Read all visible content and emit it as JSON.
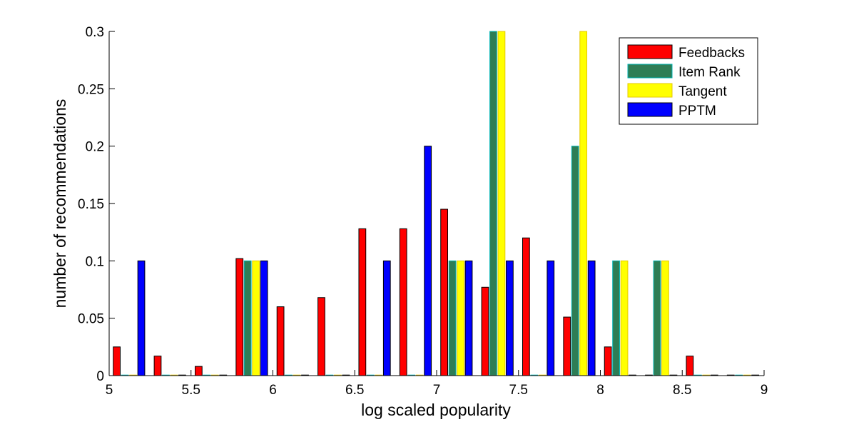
{
  "chart_data": {
    "type": "bar",
    "xlabel": "log scaled popularity",
    "ylabel": "number of recommendations",
    "xlim": [
      5,
      9
    ],
    "ylim": [
      0,
      0.3
    ],
    "xticks": [
      "5",
      "5.5",
      "6",
      "6.5",
      "7",
      "7.5",
      "8",
      "8.5",
      "9"
    ],
    "yticks": [
      "0",
      "0.05",
      "0.1",
      "0.15",
      "0.2",
      "0.25",
      "0.3"
    ],
    "legend_position": "top-right",
    "categories": [
      5.125,
      5.375,
      5.625,
      5.875,
      6.125,
      6.375,
      6.625,
      6.875,
      7.125,
      7.375,
      7.625,
      7.875,
      8.125,
      8.375,
      8.625,
      8.875
    ],
    "series": [
      {
        "name": "Feedbacks",
        "color": "#ff0000",
        "edge": "#000000",
        "values": [
          0.025,
          0.017,
          0.008,
          0.102,
          0.06,
          0.068,
          0.128,
          0.128,
          0.145,
          0.077,
          0.12,
          0.051,
          0.025,
          0,
          0.017,
          0
        ]
      },
      {
        "name": "Item Rank",
        "color": "#2e7d55",
        "edge": "#00b3b3",
        "values": [
          0,
          0,
          0,
          0.1,
          0,
          0,
          0,
          0,
          0.1,
          0.3,
          0,
          0.2,
          0.1,
          0.1,
          0,
          0
        ]
      },
      {
        "name": "Tangent",
        "color": "#ffff00",
        "edge": "#e6c800",
        "values": [
          0,
          0,
          0,
          0.1,
          0,
          0,
          0,
          0,
          0.1,
          0.3,
          0,
          0.3,
          0.1,
          0.1,
          0,
          0
        ]
      },
      {
        "name": "PPTM",
        "color": "#0000ff",
        "edge": "#000000",
        "values": [
          0.1,
          0,
          0,
          0.1,
          0,
          0,
          0.1,
          0.2,
          0.1,
          0.1,
          0.1,
          0.1,
          0,
          0,
          0,
          0
        ]
      }
    ]
  }
}
